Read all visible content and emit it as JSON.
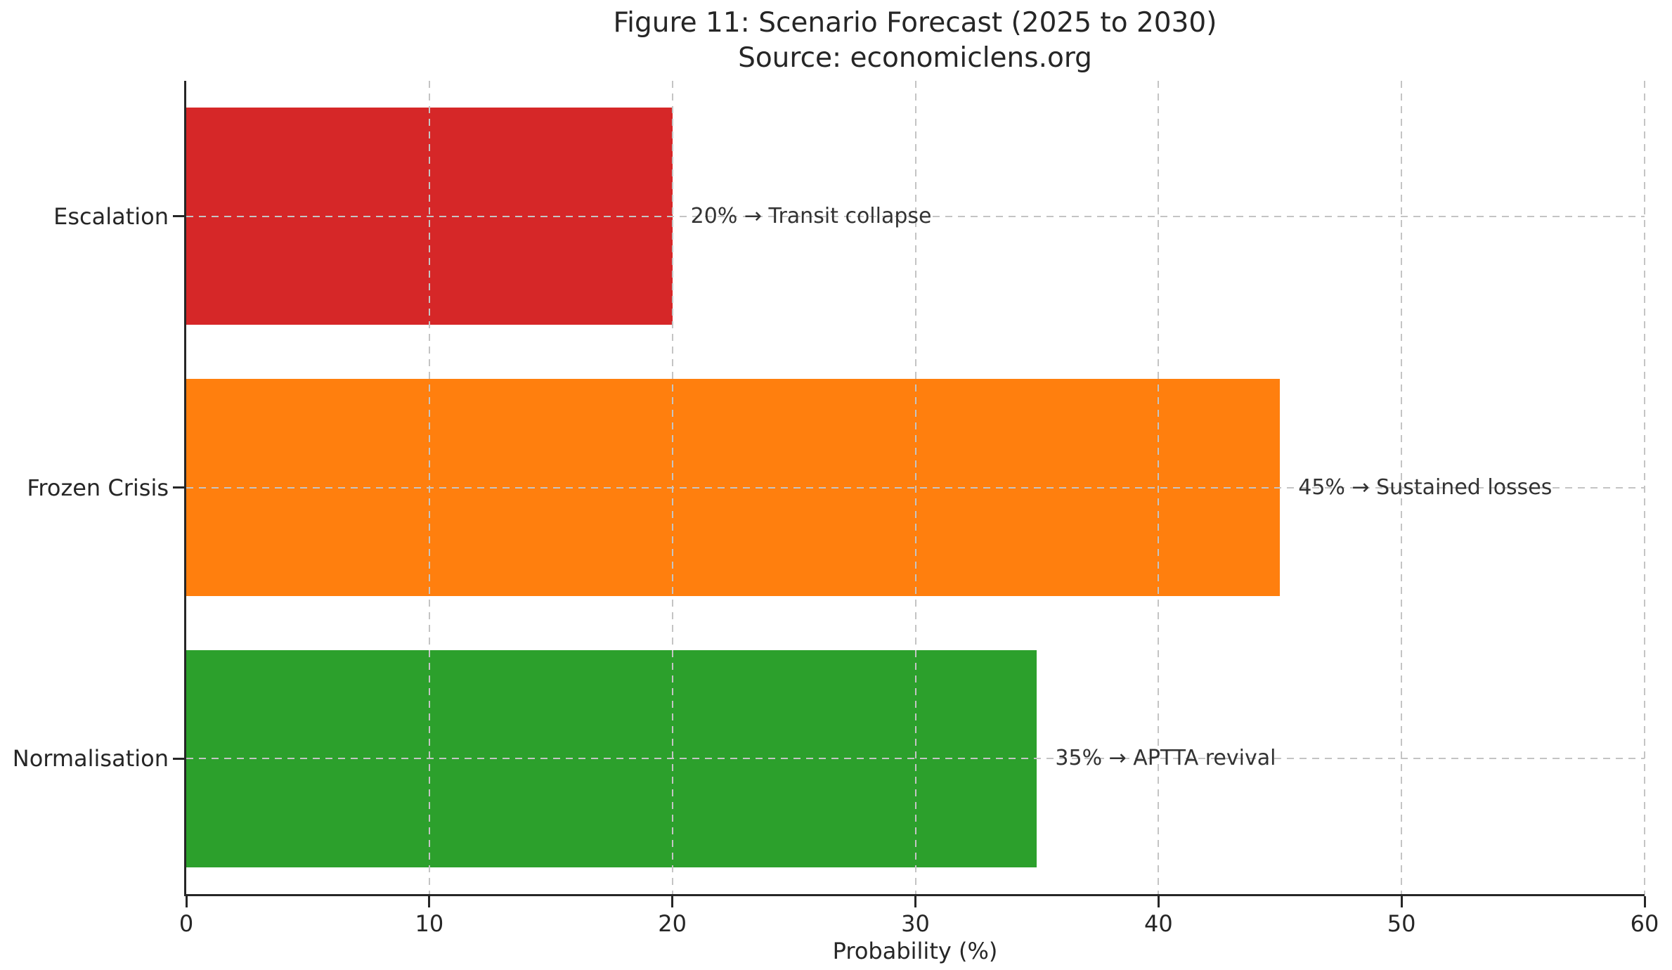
{
  "chart_data": {
    "type": "bar",
    "orientation": "horizontal",
    "title": "Figure 11: Scenario Forecast (2025 to 2030)",
    "subtitle": "Source: economiclens.org",
    "xlabel": "Probability (%)",
    "ylabel": "",
    "categories": [
      "Escalation",
      "Frozen Crisis",
      "Normalisation"
    ],
    "values": [
      20,
      45,
      35
    ],
    "annotations": [
      "20% → Transit collapse",
      "45% → Sustained losses",
      "35% → APTTA revival"
    ],
    "bar_colors": [
      "#d62728",
      "#ff7f0e",
      "#2ca02c"
    ],
    "xlim": [
      0,
      60
    ],
    "xticks": [
      0,
      10,
      20,
      30,
      40,
      50,
      60
    ],
    "grid": true,
    "grid_style": "dashed",
    "legend": false
  },
  "colors": {
    "background": "#ffffff",
    "text": "#262626",
    "annotation_text": "#333333",
    "grid": "#c4c4c4",
    "spine": "#262626"
  }
}
